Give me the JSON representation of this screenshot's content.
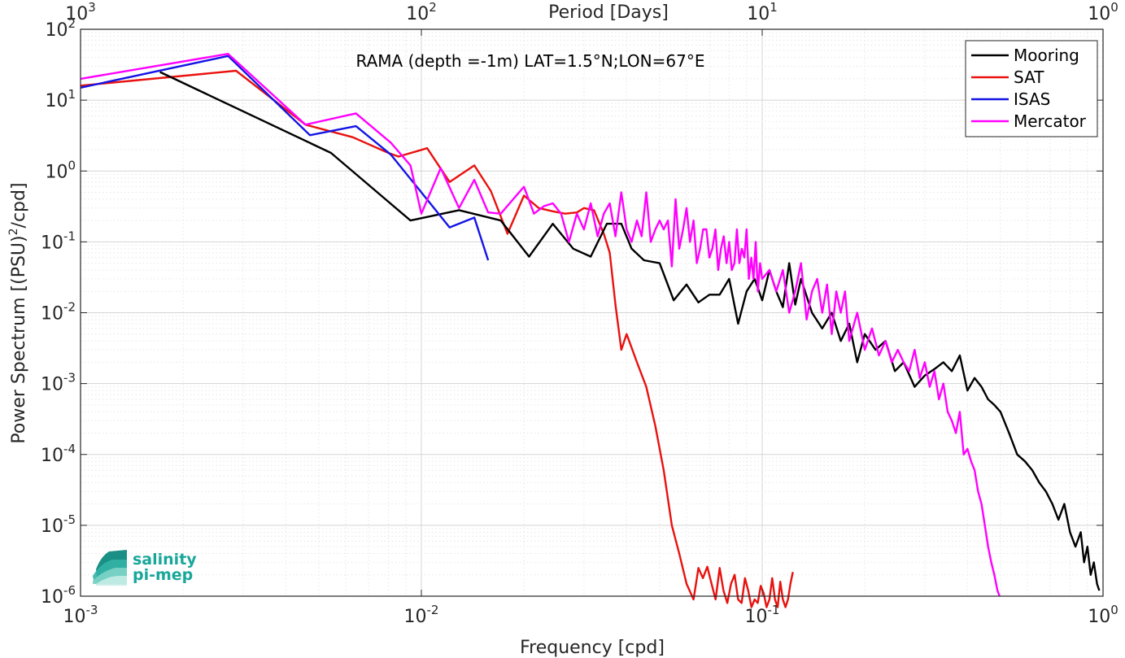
{
  "chart_data": {
    "type": "line",
    "title": "RAMA (depth =-1m) LAT=1.5°N;LON=67°E",
    "xlabel": "Frequency [cpd]",
    "x2label": "Period [Days]",
    "ylabel": "Power Spectrum [(PSU)",
    "ylabel_sup": "2",
    "ylabel_tail": "/cpd]",
    "xscale": "log",
    "yscale": "log",
    "xlim": [
      0.001,
      1
    ],
    "ylim": [
      1e-06,
      100
    ],
    "grid": true,
    "legend_position": "top-right",
    "x_ticks": [
      {
        "value": 0.001,
        "base": "10",
        "exp": "-3"
      },
      {
        "value": 0.01,
        "base": "10",
        "exp": "-2"
      },
      {
        "value": 0.1,
        "base": "10",
        "exp": "-1"
      },
      {
        "value": 1,
        "base": "10",
        "exp": "0"
      }
    ],
    "x2_ticks": [
      {
        "value": 0.001,
        "base": "10",
        "exp": "3"
      },
      {
        "value": 0.01,
        "base": "10",
        "exp": "2"
      },
      {
        "value": 0.1,
        "base": "10",
        "exp": "1"
      },
      {
        "value": 1,
        "base": "10",
        "exp": "0"
      }
    ],
    "y_ticks": [
      {
        "value": 1e-06,
        "base": "10",
        "exp": "-6"
      },
      {
        "value": 1e-05,
        "base": "10",
        "exp": "-5"
      },
      {
        "value": 0.0001,
        "base": "10",
        "exp": "-4"
      },
      {
        "value": 0.001,
        "base": "10",
        "exp": "-3"
      },
      {
        "value": 0.01,
        "base": "10",
        "exp": "-2"
      },
      {
        "value": 0.1,
        "base": "10",
        "exp": "-1"
      },
      {
        "value": 1,
        "base": "10",
        "exp": "0"
      },
      {
        "value": 10,
        "base": "10",
        "exp": "1"
      },
      {
        "value": 100,
        "base": "10",
        "exp": "2"
      }
    ],
    "series": [
      {
        "name": "Mooring",
        "color": "#000000",
        "x": [
          0.00171,
          0.00543,
          0.00929,
          0.0129,
          0.0171,
          0.0207,
          0.0243,
          0.0279,
          0.0314,
          0.035,
          0.0386,
          0.0414,
          0.045,
          0.05,
          0.055,
          0.06,
          0.065,
          0.07,
          0.075,
          0.08,
          0.085,
          0.09,
          0.095,
          0.1,
          0.105,
          0.11,
          0.115,
          0.12,
          0.125,
          0.13,
          0.14,
          0.15,
          0.16,
          0.17,
          0.18,
          0.19,
          0.2,
          0.215,
          0.23,
          0.245,
          0.26,
          0.28,
          0.3,
          0.32,
          0.34,
          0.36,
          0.38,
          0.4,
          0.42,
          0.44,
          0.46,
          0.48,
          0.5,
          0.53,
          0.56,
          0.59,
          0.62,
          0.65,
          0.68,
          0.71,
          0.74,
          0.77,
          0.8,
          0.83,
          0.86,
          0.88,
          0.9,
          0.92,
          0.94,
          0.96,
          0.975
        ],
        "y": [
          25,
          1.8,
          0.2,
          0.28,
          0.2,
          0.062,
          0.18,
          0.08,
          0.062,
          0.18,
          0.18,
          0.08,
          0.055,
          0.05,
          0.015,
          0.025,
          0.014,
          0.018,
          0.018,
          0.03,
          0.007,
          0.02,
          0.03,
          0.015,
          0.04,
          0.02,
          0.012,
          0.05,
          0.013,
          0.03,
          0.01,
          0.006,
          0.01,
          0.004,
          0.007,
          0.002,
          0.005,
          0.003,
          0.004,
          0.0015,
          0.002,
          0.0009,
          0.0013,
          0.0016,
          0.002,
          0.0015,
          0.0025,
          0.0008,
          0.0012,
          0.0009,
          0.0006,
          0.0005,
          0.0004,
          0.0002,
          0.0001,
          8e-05,
          6e-05,
          4e-05,
          3e-05,
          2e-05,
          1.2e-05,
          2e-05,
          8e-06,
          5e-06,
          8e-06,
          3e-06,
          5e-06,
          2e-06,
          3e-06,
          1.5e-06,
          1.2e-06
        ]
      },
      {
        "name": "SAT",
        "color": "#e8120f",
        "x": [
          0.001,
          0.00286,
          0.00457,
          0.00629,
          0.008,
          0.00857,
          0.0104,
          0.0121,
          0.0143,
          0.016,
          0.0179,
          0.02,
          0.0221,
          0.0243,
          0.0264,
          0.0286,
          0.03,
          0.0321,
          0.0343,
          0.0357,
          0.0371,
          0.0386,
          0.04,
          0.0429,
          0.0457,
          0.0486,
          0.0514,
          0.0543,
          0.0571,
          0.06,
          0.0629,
          0.065,
          0.067,
          0.069,
          0.071,
          0.073,
          0.075,
          0.077,
          0.079,
          0.081,
          0.083,
          0.085,
          0.087,
          0.089,
          0.091,
          0.093,
          0.095,
          0.097,
          0.099,
          0.101,
          0.103,
          0.105,
          0.107,
          0.109,
          0.111,
          0.113,
          0.115,
          0.117,
          0.119,
          0.121,
          0.123
        ],
        "y": [
          16,
          26,
          4.5,
          3,
          1.8,
          1.6,
          2.1,
          0.7,
          1.2,
          0.52,
          0.13,
          0.45,
          0.3,
          0.27,
          0.25,
          0.26,
          0.3,
          0.28,
          0.13,
          0.07,
          0.013,
          0.003,
          0.005,
          0.002,
          0.0009,
          0.00025,
          6e-05,
          1e-05,
          4e-06,
          1.5e-06,
          9e-07,
          2.5e-06,
          1.8e-06,
          2.6e-06,
          1.5e-06,
          9e-07,
          2.5e-06,
          1.2e-06,
          8e-07,
          1.5e-06,
          2e-06,
          9e-07,
          8e-07,
          1.8e-06,
          1.2e-06,
          7e-07,
          9e-07,
          8e-07,
          1.4e-06,
          1.1e-06,
          7e-07,
          9e-07,
          1.8e-06,
          9e-07,
          7e-07,
          1.6e-06,
          9e-07,
          7e-07,
          9e-07,
          1.5e-06,
          2.2e-06
        ]
      },
      {
        "name": "ISAS",
        "color": "#1414e6",
        "x": [
          0.001,
          0.00271,
          0.00471,
          0.00643,
          0.00814,
          0.01,
          0.0121,
          0.0143,
          0.0157
        ],
        "y": [
          15,
          42,
          3.2,
          4.3,
          1.7,
          0.5,
          0.16,
          0.22,
          0.055
        ]
      },
      {
        "name": "Mercator",
        "color": "#ff00ff",
        "x": [
          0.001,
          0.00271,
          0.00457,
          0.00643,
          0.00814,
          0.00929,
          0.01,
          0.0114,
          0.0129,
          0.0143,
          0.0157,
          0.0171,
          0.0186,
          0.02,
          0.0214,
          0.0229,
          0.0243,
          0.0257,
          0.0271,
          0.0286,
          0.03,
          0.0314,
          0.0329,
          0.0343,
          0.0357,
          0.0371,
          0.0386,
          0.04,
          0.0414,
          0.0429,
          0.0443,
          0.0457,
          0.0471,
          0.0486,
          0.05,
          0.0514,
          0.0529,
          0.0543,
          0.0557,
          0.0571,
          0.0586,
          0.06,
          0.0614,
          0.0629,
          0.0643,
          0.0657,
          0.0671,
          0.0686,
          0.07,
          0.0714,
          0.0729,
          0.0743,
          0.0757,
          0.0771,
          0.0786,
          0.08,
          0.0814,
          0.0829,
          0.0843,
          0.0857,
          0.0871,
          0.0886,
          0.09,
          0.0914,
          0.0929,
          0.0943,
          0.0957,
          0.0971,
          0.0986,
          0.1,
          0.105,
          0.11,
          0.115,
          0.12,
          0.125,
          0.13,
          0.135,
          0.14,
          0.145,
          0.15,
          0.155,
          0.16,
          0.165,
          0.17,
          0.175,
          0.18,
          0.19,
          0.2,
          0.21,
          0.22,
          0.23,
          0.24,
          0.25,
          0.26,
          0.27,
          0.28,
          0.29,
          0.3,
          0.31,
          0.32,
          0.33,
          0.34,
          0.35,
          0.36,
          0.37,
          0.38,
          0.39,
          0.4,
          0.41,
          0.42,
          0.43,
          0.44,
          0.45,
          0.46,
          0.47,
          0.48,
          0.49,
          0.497
        ],
        "y": [
          20,
          45,
          4.5,
          6.5,
          2.5,
          1.2,
          0.25,
          1.1,
          0.3,
          0.75,
          0.26,
          0.25,
          0.4,
          0.6,
          0.25,
          0.32,
          0.35,
          0.25,
          0.1,
          0.25,
          0.15,
          0.35,
          0.12,
          0.25,
          0.35,
          0.12,
          0.5,
          0.15,
          0.1,
          0.2,
          0.12,
          0.5,
          0.1,
          0.15,
          0.2,
          0.15,
          0.2,
          0.045,
          0.4,
          0.08,
          0.15,
          0.3,
          0.1,
          0.2,
          0.05,
          0.08,
          0.15,
          0.15,
          0.06,
          0.08,
          0.15,
          0.04,
          0.08,
          0.12,
          0.05,
          0.1,
          0.04,
          0.05,
          0.15,
          0.05,
          0.08,
          0.06,
          0.15,
          0.03,
          0.06,
          0.03,
          0.1,
          0.02,
          0.05,
          0.03,
          0.04,
          0.02,
          0.04,
          0.01,
          0.02,
          0.05,
          0.008,
          0.02,
          0.03,
          0.01,
          0.025,
          0.005,
          0.02,
          0.01,
          0.02,
          0.004,
          0.01,
          0.003,
          0.006,
          0.0025,
          0.004,
          0.002,
          0.003,
          0.002,
          0.0015,
          0.003,
          0.0012,
          0.002,
          0.0009,
          0.0015,
          0.0006,
          0.001,
          0.0004,
          0.0003,
          0.0002,
          0.0004,
          0.0001,
          0.00012,
          8e-05,
          6e-05,
          3e-05,
          2e-05,
          1e-05,
          5e-06,
          3e-06,
          2e-06,
          1.2e-06,
          1e-06
        ]
      }
    ]
  },
  "logo": {
    "line1": "salinity",
    "line2": "pi-mep"
  }
}
